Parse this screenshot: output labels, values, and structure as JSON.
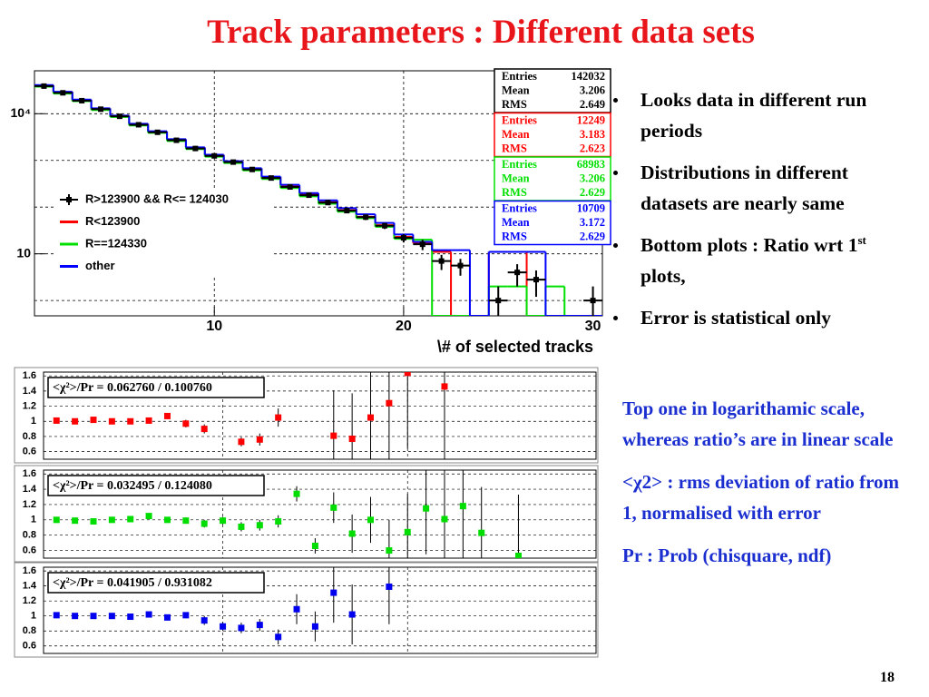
{
  "title": "Track parameters : Different data sets",
  "bullets": [
    [
      "Looks data in different run periods"
    ],
    [
      "Distributions in different datasets are nearly same"
    ],
    [
      "Bottom plots : Ratio wrt 1",
      "st",
      " plots,"
    ],
    [
      "Error is statistical only"
    ]
  ],
  "notes": [
    "Top one in logarithamic scale, whereas ratio’s are in linear scale",
    "<χ2> : rms deviation of ratio from 1, normalised with error",
    "Pr : Prob (chisquare, ndf)"
  ],
  "page_number": "18",
  "chart_data": [
    {
      "type": "histogram",
      "x_label": "\\# of selected tracks",
      "log_y": true,
      "bins": [
        0.5,
        1.5,
        2.5,
        3.5,
        4.5,
        5.5,
        6.5,
        7.5,
        8.5,
        9.5,
        10.5,
        11.5,
        12.5,
        13.5,
        14.5,
        15.5,
        16.5,
        17.5,
        18.5,
        19.5,
        20.5,
        21.5,
        22.5,
        23.5,
        24.5,
        25.5,
        26.5,
        27.5,
        28.5,
        29.5,
        30.5
      ],
      "xlim": [
        0.5,
        30.5
      ],
      "xticks": [
        10,
        20,
        30
      ],
      "xgrid": [
        10,
        20
      ],
      "ylim": [
        0.47,
        83000
      ],
      "yticks": [
        {
          "value": 10000,
          "label": "10⁴"
        },
        10
      ],
      "ygrid": [
        1,
        10,
        100,
        1000,
        10000
      ],
      "stat_labels": [
        "Entries",
        "Mean",
        "RMS"
      ],
      "series": [
        {
          "name": "R>123900 && R<= 124030",
          "color": "#000000",
          "style": "points",
          "values": [
            39000,
            28000,
            19000,
            12500,
            8800,
            5800,
            4000,
            2700,
            1800,
            1250,
            920,
            640,
            420,
            270,
            180,
            125,
            84,
            61,
            40,
            22,
            16,
            7,
            5.6,
            null,
            1,
            4,
            2.8,
            null,
            null,
            1
          ],
          "errors": [
            200,
            170,
            140,
            110,
            95,
            75,
            65,
            50,
            40,
            35,
            30,
            25,
            20,
            16,
            13,
            11,
            9,
            8,
            6,
            4.5,
            4,
            2.5,
            2.2,
            null,
            1,
            2,
            1.6,
            null,
            null,
            1
          ],
          "stats": [
            142032,
            3.206,
            2.649
          ]
        },
        {
          "name": "R<123900",
          "color": "#ff0000",
          "style": "step",
          "values": [
            40000,
            29000,
            19500,
            12800,
            9000,
            6000,
            4100,
            2800,
            1850,
            1300,
            950,
            660,
            430,
            280,
            185,
            128,
            86,
            62,
            41,
            23,
            17,
            11,
            0,
            0,
            11,
            11,
            0,
            0,
            0,
            0
          ],
          "stats": [
            12249,
            3.183,
            2.623
          ]
        },
        {
          "name": "R==124330",
          "color": "#00e000",
          "style": "step",
          "values": [
            38000,
            27000,
            18500,
            12000,
            8500,
            5600,
            3900,
            2600,
            1750,
            1200,
            880,
            610,
            400,
            255,
            170,
            118,
            80,
            58,
            38,
            21,
            20,
            0,
            0,
            0,
            2,
            2,
            0,
            2,
            0,
            0
          ],
          "stats": [
            68983,
            3.206,
            2.629
          ]
        },
        {
          "name": "other",
          "color": "#0000ff",
          "style": "step",
          "values": [
            41000,
            29500,
            20000,
            13000,
            9100,
            6100,
            4200,
            2850,
            1900,
            1320,
            960,
            680,
            450,
            300,
            200,
            140,
            95,
            70,
            46,
            26,
            18,
            12,
            12,
            0,
            11,
            11,
            11,
            0,
            0,
            0
          ],
          "stats": [
            10709,
            3.172,
            2.629
          ]
        }
      ]
    },
    {
      "type": "scatter",
      "color": "#ff0000",
      "stat_text": "<χ²>/Pr = 0.062760 / 0.100760",
      "x": [
        1,
        2,
        3,
        4,
        5,
        6,
        7,
        8,
        9,
        10,
        11,
        12,
        13,
        14,
        15,
        16,
        17,
        18,
        19,
        20,
        21,
        22,
        23,
        24,
        25,
        26,
        27,
        28,
        29,
        30
      ],
      "values": [
        1.01,
        1.0,
        1.02,
        1.0,
        1.0,
        1.01,
        1.07,
        0.97,
        0.9,
        null,
        0.73,
        0.76,
        1.05,
        null,
        null,
        0.81,
        0.77,
        1.05,
        1.24,
        1.64,
        null,
        1.46,
        null,
        null,
        null,
        null,
        null,
        null,
        null,
        null
      ],
      "errors": [
        0.01,
        0.01,
        0.01,
        0.02,
        0.02,
        0.03,
        0.04,
        0.05,
        0.06,
        null,
        0.06,
        0.08,
        0.12,
        null,
        null,
        0.6,
        0.6,
        1.0,
        0.8,
        1.0,
        null,
        1.2,
        null,
        null,
        null,
        null,
        null,
        null,
        null,
        null
      ],
      "xlim": [
        0.3,
        30.2
      ],
      "xgrid": [
        10,
        20
      ],
      "ylim": [
        0.5,
        1.65
      ],
      "yticks": [
        0.6,
        0.8,
        1,
        1.2,
        1.4,
        1.6
      ]
    },
    {
      "type": "scatter",
      "color": "#00dd00",
      "stat_text": "<χ²>/Pr = 0.032495 / 0.124080",
      "x": [
        1,
        2,
        3,
        4,
        5,
        6,
        7,
        8,
        9,
        10,
        11,
        12,
        13,
        14,
        15,
        16,
        17,
        18,
        19,
        20,
        21,
        22,
        23,
        24,
        25,
        26,
        27,
        28,
        29,
        30
      ],
      "values": [
        1.0,
        0.99,
        0.98,
        1.0,
        1.01,
        1.05,
        1.0,
        0.99,
        0.95,
        0.99,
        0.91,
        0.93,
        0.98,
        1.34,
        0.66,
        1.16,
        0.82,
        1.0,
        0.6,
        0.84,
        1.15,
        1.01,
        1.18,
        0.83,
        null,
        0.53,
        null,
        null,
        null,
        null
      ],
      "errors": [
        0.01,
        0.01,
        0.01,
        0.02,
        0.02,
        0.03,
        0.03,
        0.04,
        0.05,
        0.05,
        0.06,
        0.07,
        0.08,
        0.1,
        0.1,
        0.2,
        0.25,
        0.3,
        0.4,
        0.5,
        0.6,
        0.7,
        0.8,
        0.6,
        null,
        0.8,
        null,
        null,
        null,
        null
      ],
      "xlim": [
        0.3,
        30.2
      ],
      "xgrid": [
        10,
        20
      ],
      "ylim": [
        0.5,
        1.65
      ],
      "yticks": [
        0.6,
        0.8,
        1,
        1.2,
        1.4,
        1.6
      ]
    },
    {
      "type": "scatter",
      "color": "#0000ee",
      "stat_text": "<χ²>/Pr = 0.041905 / 0.931082",
      "x": [
        1,
        2,
        3,
        4,
        5,
        6,
        7,
        8,
        9,
        10,
        11,
        12,
        13,
        14,
        15,
        16,
        17,
        18,
        19,
        20,
        21,
        22,
        23,
        24,
        25,
        26,
        27,
        28,
        29,
        30
      ],
      "values": [
        1.01,
        1.0,
        1.0,
        1.0,
        0.99,
        1.02,
        0.98,
        1.01,
        0.94,
        0.86,
        0.84,
        0.88,
        0.72,
        1.09,
        0.86,
        1.31,
        1.02,
        null,
        1.39,
        null,
        null,
        null,
        null,
        null,
        null,
        null,
        null,
        null,
        null,
        null
      ],
      "errors": [
        0.01,
        0.01,
        0.02,
        0.02,
        0.02,
        0.03,
        0.04,
        0.04,
        0.06,
        0.06,
        0.07,
        0.08,
        0.1,
        0.2,
        0.2,
        0.4,
        0.4,
        null,
        0.5,
        null,
        null,
        null,
        null,
        null,
        null,
        null,
        null,
        null,
        null,
        null
      ],
      "xlim": [
        0.3,
        30.2
      ],
      "xgrid": [
        10,
        20
      ],
      "ylim": [
        0.5,
        1.65
      ],
      "yticks": [
        0.6,
        0.8,
        1,
        1.2,
        1.4,
        1.6
      ]
    }
  ]
}
